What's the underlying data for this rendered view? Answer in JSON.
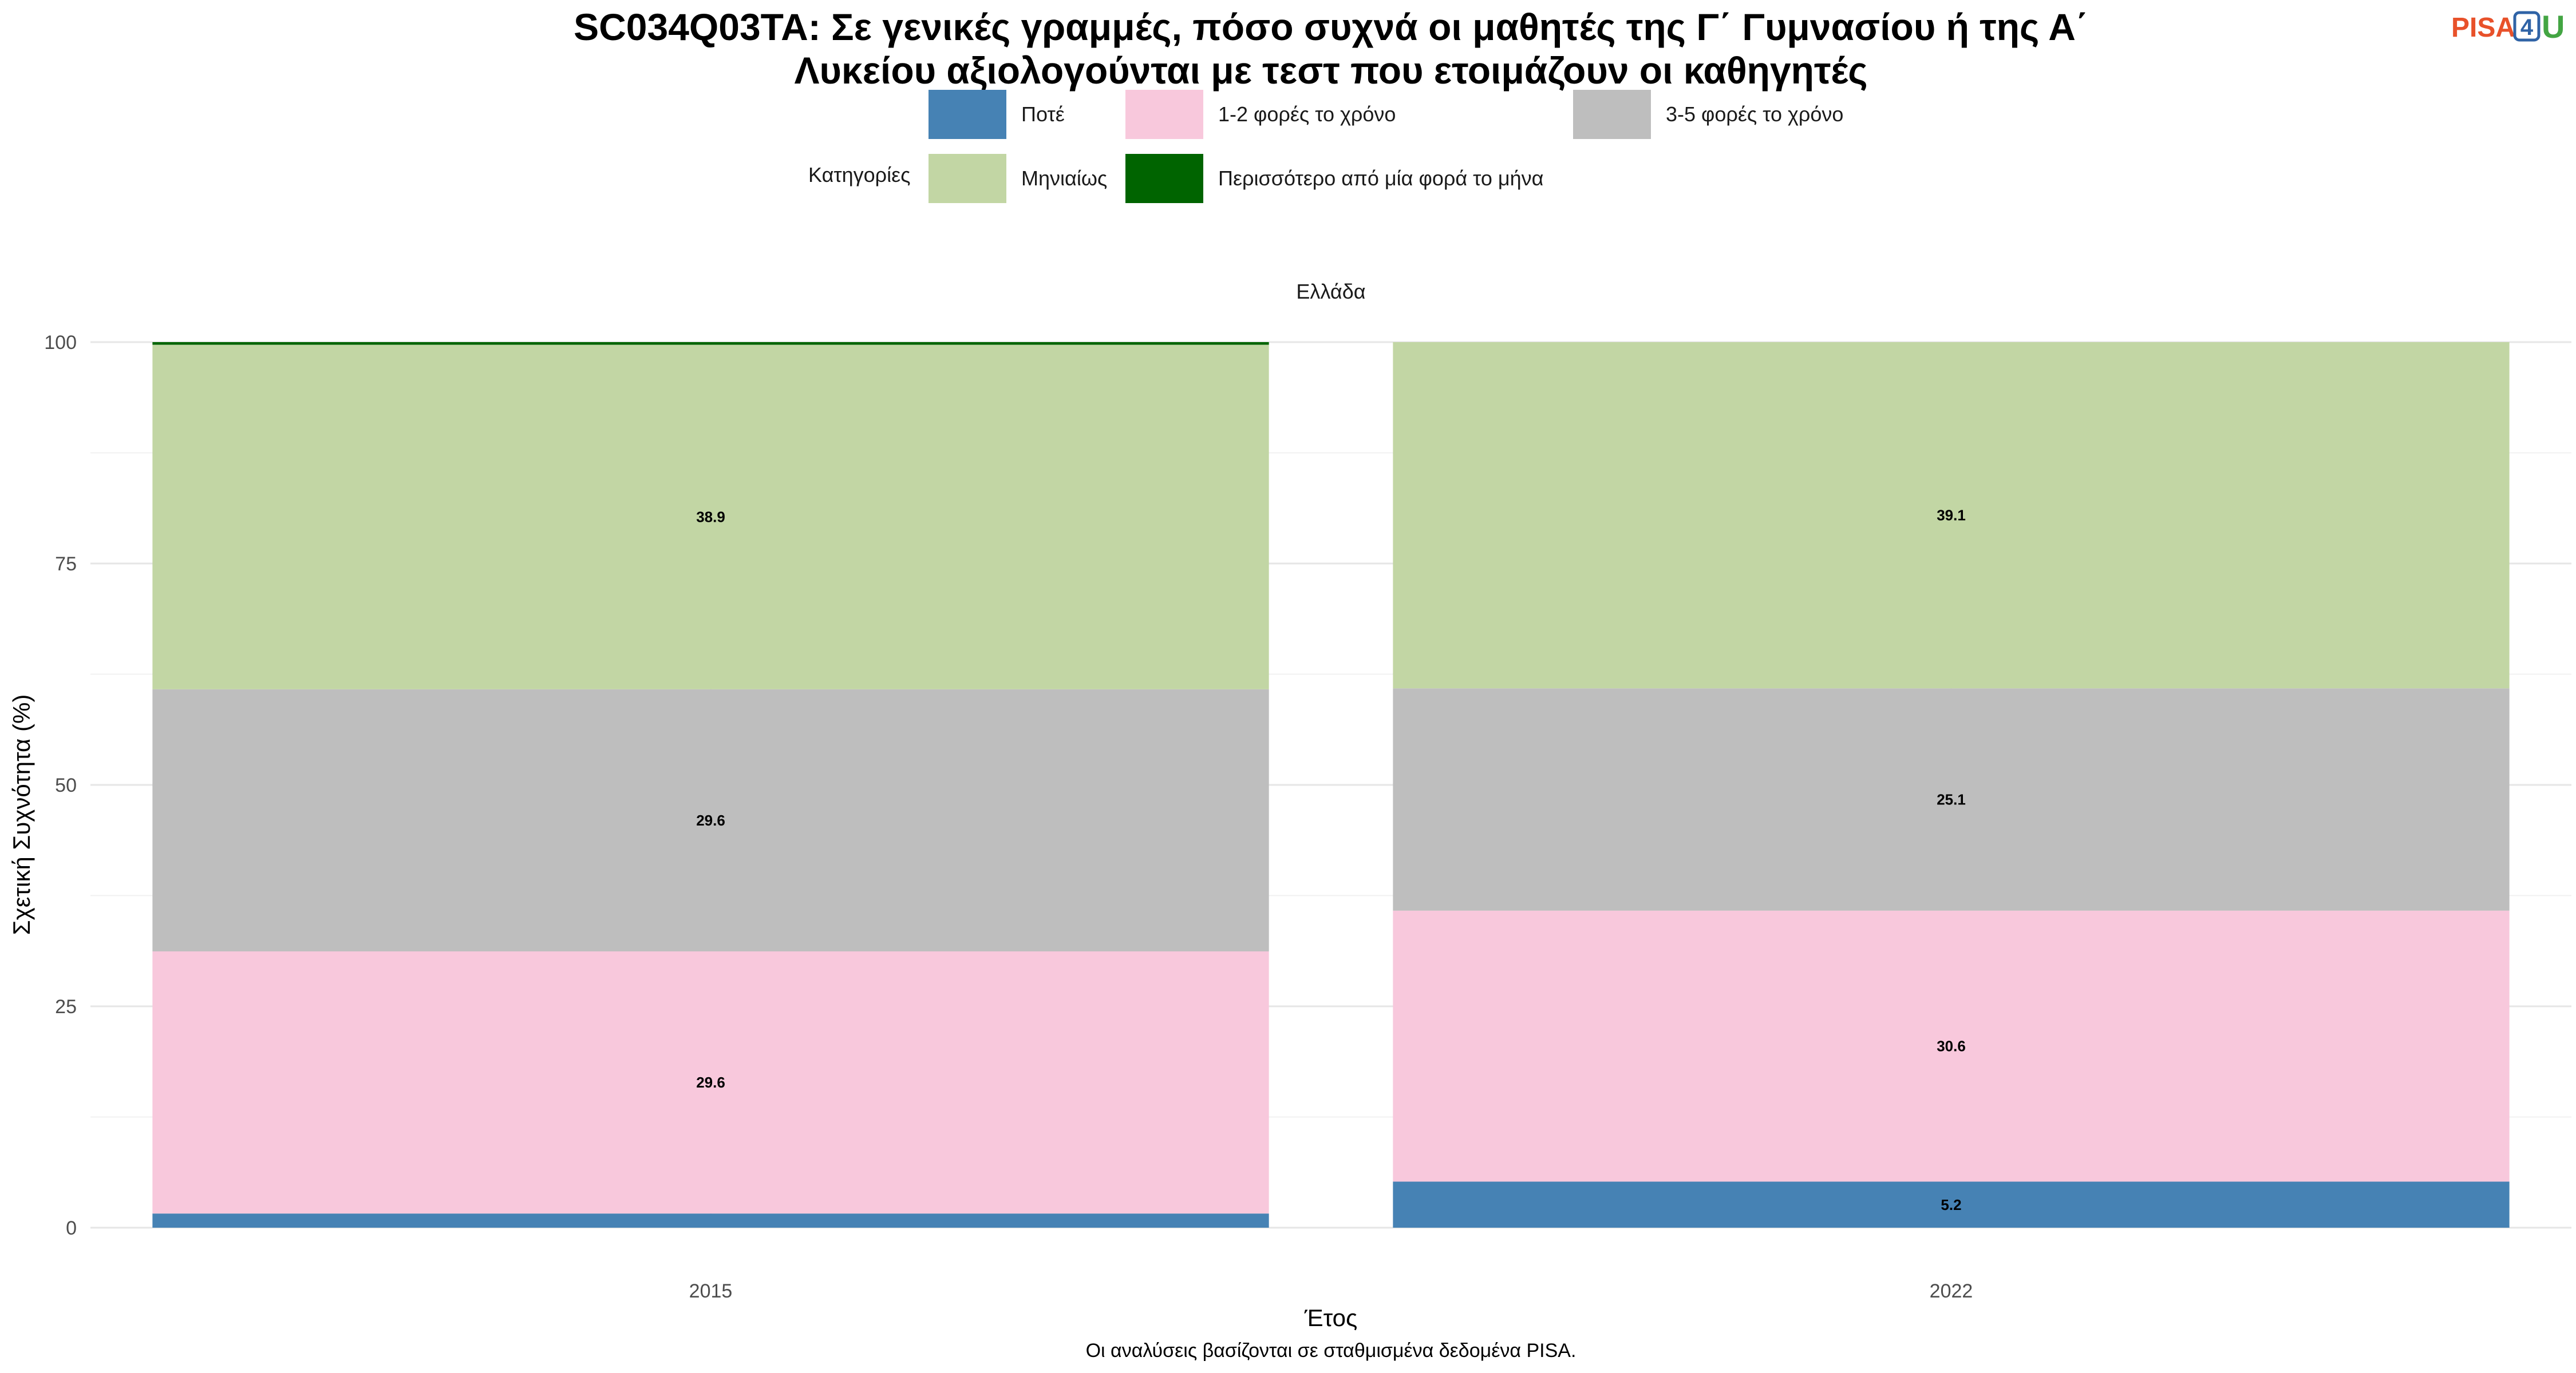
{
  "logo": {
    "part1": "PISA",
    "part2": "4",
    "part3": "U"
  },
  "chart_data": {
    "type": "bar",
    "stacked": true,
    "title_lines": [
      "SC034Q03TA: Σε γενικές γραμμές, πόσο συχνά οι μαθητές της Γ΄ Γυμνασίου ή της Α΄",
      "Λυκείου αξιολογούνται με τεστ που ετοιμάζουν οι καθηγητές"
    ],
    "facet": "Ελλάδα",
    "legend_title": "Κατηγορίες",
    "legend_position": "top",
    "xlabel": "Έτος",
    "ylabel": "Σχετική Συχνότητα (%)",
    "caption": "Οι αναλύσεις βασίζονται σε σταθμισμένα δεδομένα PISA.",
    "categories": [
      "2015",
      "2022"
    ],
    "ylim": [
      0,
      100
    ],
    "yticks": [
      0,
      25,
      50,
      75,
      100
    ],
    "grid": true,
    "series": [
      {
        "name": "Ποτέ",
        "color": "#4682b4",
        "values": [
          1.6,
          5.2
        ],
        "labels": [
          "",
          "5.2"
        ]
      },
      {
        "name": "1-2 φορές το χρόνο",
        "color": "#f8c8dc",
        "values": [
          29.6,
          30.6
        ],
        "labels": [
          "29.6",
          "30.6"
        ]
      },
      {
        "name": "3-5 φορές το χρόνο",
        "color": "#bebebe",
        "values": [
          29.6,
          25.1
        ],
        "labels": [
          "29.6",
          "25.1"
        ]
      },
      {
        "name": "Μηνιαίως",
        "color": "#c2d6a4",
        "values": [
          38.9,
          39.1
        ],
        "labels": [
          "38.9",
          "39.1"
        ]
      },
      {
        "name": "Περισσότερο από μία φορά το μήνα",
        "color": "#006400",
        "values": [
          0.3,
          0.0
        ],
        "labels": [
          "",
          ""
        ]
      }
    ]
  }
}
